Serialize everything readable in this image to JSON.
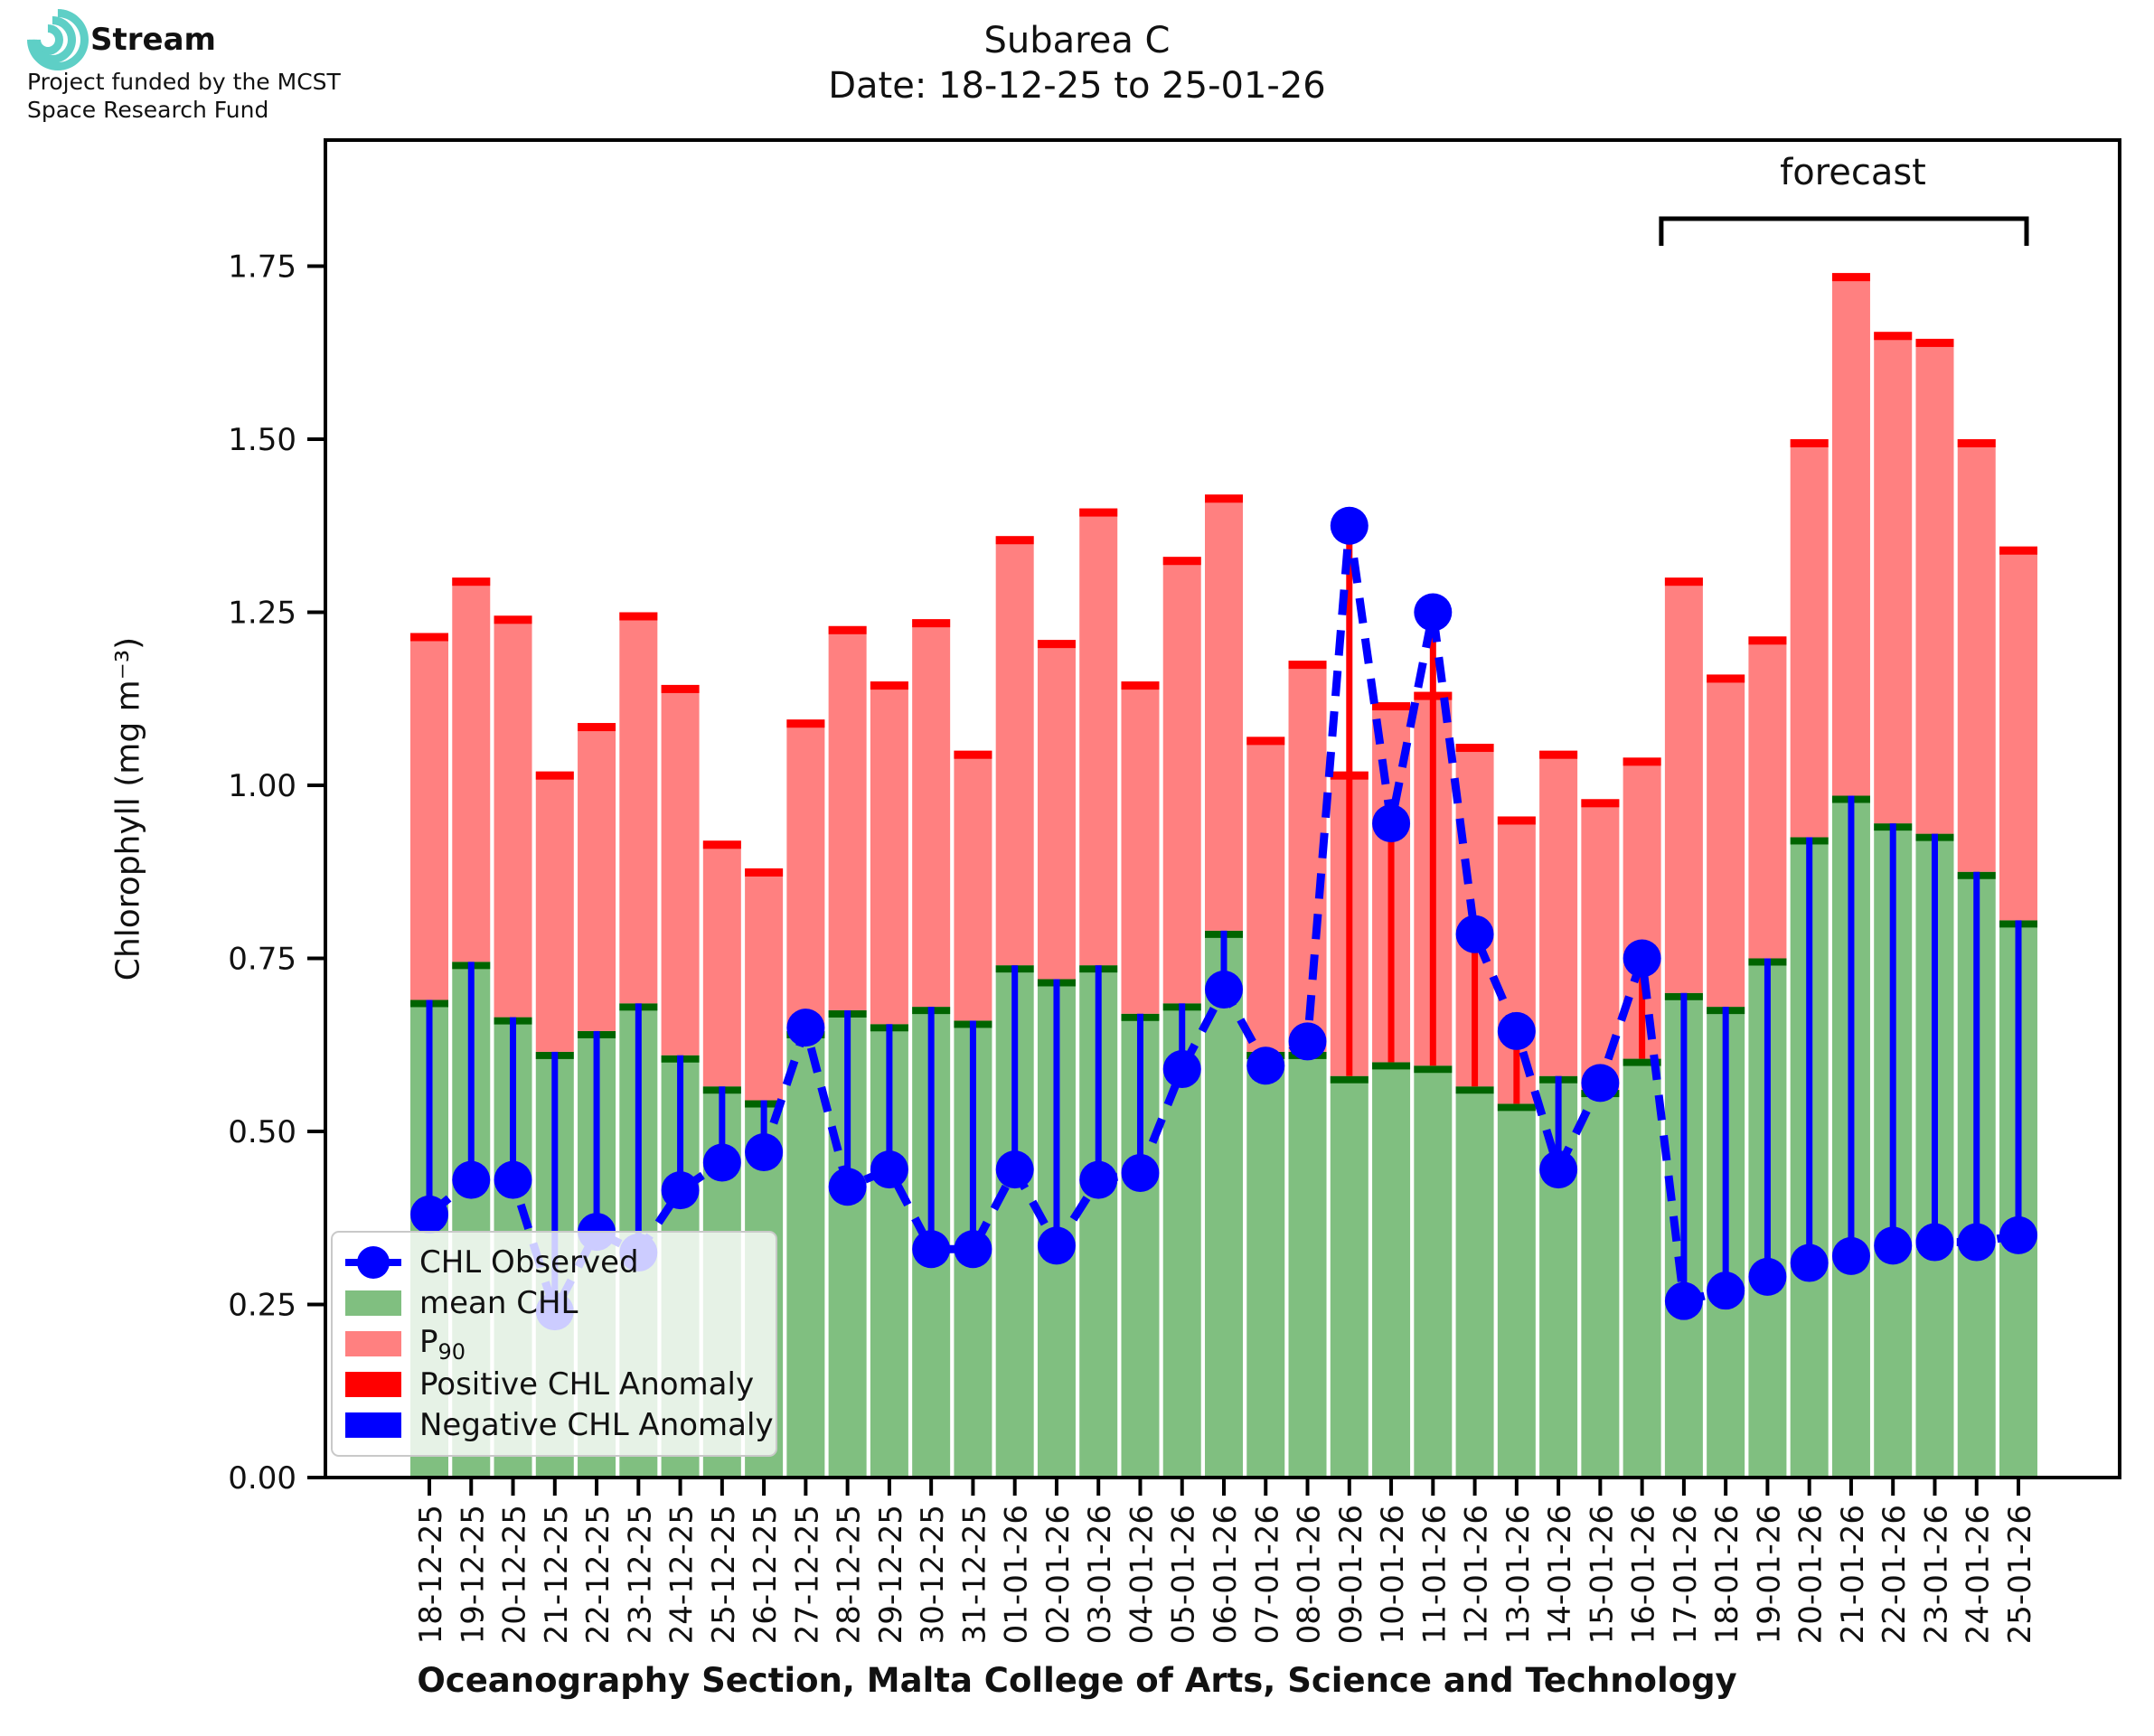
{
  "logo": {
    "brand": "Stream",
    "subtitle_line1": "Project funded by the MCST",
    "subtitle_line2": "Space Research Fund"
  },
  "title": {
    "line1": "Subarea C",
    "line2": "Date: 18-12-25 to 25-01-26"
  },
  "forecast_label": "forecast",
  "axes": {
    "ylabel": "Chlorophyll (mg m⁻³)",
    "xlabel": "Oceanography Section, Malta College of Arts, Science and Technology",
    "ytick_labels": [
      "0.00",
      "0.25",
      "0.50",
      "0.75",
      "1.00",
      "1.25",
      "1.50",
      "1.75"
    ],
    "ytick_values": [
      0,
      0.25,
      0.5,
      0.75,
      1.0,
      1.25,
      1.5,
      1.75
    ]
  },
  "legend": {
    "items": [
      {
        "label": "CHL Observed",
        "marker": "line"
      },
      {
        "label": "mean CHL",
        "marker": "swatch",
        "color": "#80bf80"
      },
      {
        "label": "P",
        "sub": "90",
        "marker": "swatch",
        "color": "#ff8080"
      },
      {
        "label": "Positive CHL Anomaly",
        "marker": "swatch",
        "color": "#ff0000"
      },
      {
        "label": "Negative CHL Anomaly",
        "marker": "swatch",
        "color": "#0000ff"
      }
    ]
  },
  "chart_data": {
    "type": "bar",
    "title": "Subarea C",
    "xlabel": "Oceanography Section, Malta College of Arts, Science and Technology",
    "ylabel": "Chlorophyll (mg m-3)",
    "ylim": [
      0,
      1.932
    ],
    "grid": false,
    "legend_position": "lower left",
    "categories": [
      "18-12-25",
      "19-12-25",
      "20-12-25",
      "21-12-25",
      "22-12-25",
      "23-12-25",
      "24-12-25",
      "25-12-25",
      "26-12-25",
      "27-12-25",
      "28-12-25",
      "29-12-25",
      "30-12-25",
      "31-12-25",
      "01-01-26",
      "02-01-26",
      "03-01-26",
      "04-01-26",
      "05-01-26",
      "06-01-26",
      "07-01-26",
      "08-01-26",
      "09-01-26",
      "10-01-26",
      "11-01-26",
      "12-01-26",
      "13-01-26",
      "14-01-26",
      "15-01-26",
      "16-01-26",
      "17-01-26",
      "18-01-26",
      "19-01-26",
      "20-01-26",
      "21-01-26",
      "22-01-26",
      "23-01-26",
      "24-01-26",
      "25-01-26"
    ],
    "series": [
      {
        "name": "mean CHL",
        "render": "bar",
        "fill": "#80bf80",
        "edge": "#006400",
        "values": [
          0.69,
          0.745,
          0.665,
          0.615,
          0.645,
          0.685,
          0.61,
          0.565,
          0.545,
          0.645,
          0.675,
          0.655,
          0.68,
          0.66,
          0.74,
          0.72,
          0.74,
          0.67,
          0.685,
          0.79,
          0.615,
          0.615,
          0.58,
          0.6,
          0.595,
          0.565,
          0.54,
          0.58,
          0.56,
          0.605,
          0.7,
          0.68,
          0.75,
          0.925,
          0.985,
          0.945,
          0.93,
          0.875,
          0.805
        ]
      },
      {
        "name": "P90",
        "render": "bar",
        "fill": "#ff8080",
        "edge": "#ff0000",
        "values": [
          1.22,
          1.3,
          1.245,
          1.02,
          1.09,
          1.25,
          1.145,
          0.92,
          0.88,
          1.095,
          1.23,
          1.15,
          1.24,
          1.05,
          1.36,
          1.21,
          1.4,
          1.15,
          1.33,
          1.42,
          1.07,
          1.18,
          1.02,
          1.12,
          1.135,
          1.06,
          0.955,
          1.05,
          0.98,
          1.04,
          1.3,
          1.16,
          1.215,
          1.5,
          1.74,
          1.655,
          1.645,
          1.5,
          1.345
        ]
      },
      {
        "name": "CHL Observed",
        "render": "line+marker",
        "color": "#0000ff",
        "values": [
          0.38,
          0.43,
          0.43,
          0.24,
          0.355,
          0.325,
          0.415,
          0.455,
          0.47,
          0.65,
          0.42,
          0.445,
          0.33,
          0.33,
          0.445,
          0.335,
          0.43,
          0.44,
          0.59,
          0.705,
          0.595,
          0.63,
          1.375,
          0.945,
          1.25,
          0.785,
          0.645,
          0.445,
          0.57,
          0.75,
          0.255,
          0.27,
          0.29,
          0.31,
          0.32,
          0.335,
          0.34,
          0.34,
          0.35
        ]
      }
    ],
    "anomaly": {
      "description": "vertical line from mean CHL to CHL Observed per day",
      "positive_color": "#ff0000",
      "negative_color": "#0000ff"
    },
    "forecast": {
      "label": "forecast",
      "start_category": "17-01-26",
      "end_category": "25-01-26",
      "start_index": 30
    }
  }
}
